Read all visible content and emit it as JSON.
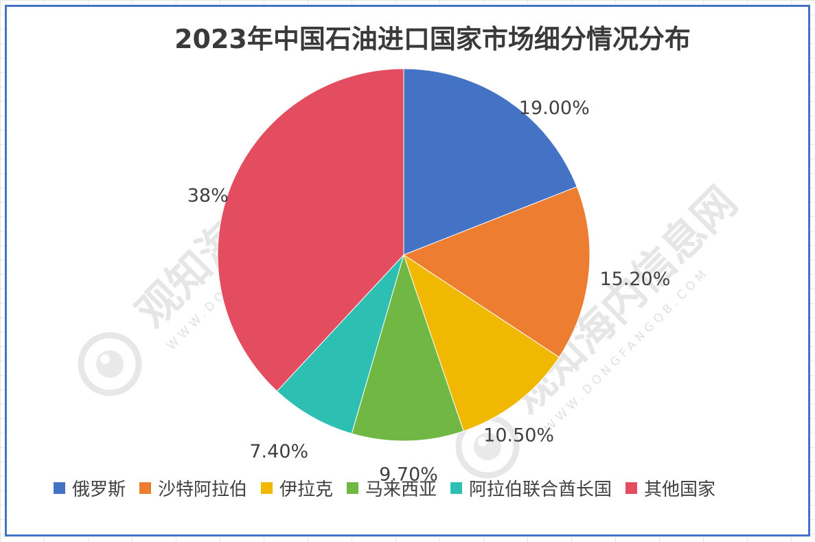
{
  "chart_data": {
    "type": "pie",
    "title": "2023年中国石油进口国家市场细分情况分布",
    "categories": [
      "俄罗斯",
      "沙特阿拉伯",
      "伊拉克",
      "马来西亚",
      "阿拉伯联合酋长国",
      "其他国家"
    ],
    "values": [
      19.0,
      15.2,
      10.5,
      9.7,
      7.4,
      38.0
    ],
    "data_labels": [
      "19.00%",
      "15.20%",
      "10.50%",
      "9.70%",
      "7.40%",
      "38%"
    ],
    "colors": [
      "#4472c4",
      "#ed7d31",
      "#f0b800",
      "#70b843",
      "#2ebfb3",
      "#e34d5f"
    ],
    "start_angle": "12 o'clock",
    "direction": "clockwise",
    "legend_position": "bottom"
  },
  "watermark": {
    "name": "观知海内信息网",
    "url": "WWW.DONGFANGQB.COM"
  }
}
